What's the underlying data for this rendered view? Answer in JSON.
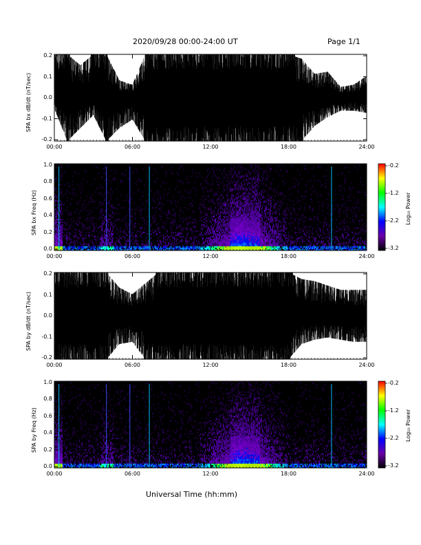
{
  "header": {
    "date_range": "2020/09/28  00:00-24:00 UT",
    "page": "Page 1/1"
  },
  "x_axis": {
    "label": "Universal Time (hh:mm)",
    "ticks": [
      "00:00",
      "06:00",
      "12:00",
      "18:00",
      "24:00"
    ]
  },
  "colorbar": {
    "label": "Log₁₀ Power",
    "ticks": [
      "-0.2",
      "-1.2",
      "-2.2",
      "-3.2"
    ],
    "colors": [
      "#ff0000",
      "#ffff00",
      "#00ff00",
      "#00ffff",
      "#0000ff",
      "#6a00a8",
      "#000000"
    ]
  },
  "panels": [
    {
      "ylabel": "SPA bx dB/dt (nT/sec)",
      "yticks": [
        "0.2",
        "0.1",
        "0.0",
        "-0.1",
        "-0.2"
      ]
    },
    {
      "ylabel": "SPA bx Freq (Hz)",
      "yticks": [
        "1.0",
        "0.8",
        "0.6",
        "0.4",
        "0.2",
        "0.0"
      ]
    },
    {
      "ylabel": "SPA by dB/dt (nT/sec)",
      "yticks": [
        "0.2",
        "0.1",
        "0.0",
        "-0.1",
        "-0.2"
      ]
    },
    {
      "ylabel": "SPA by Freq (Hz)",
      "yticks": [
        "1.0",
        "0.8",
        "0.6",
        "0.4",
        "0.2",
        "0.0"
      ]
    }
  ],
  "chart_data": [
    {
      "type": "line",
      "ylabel": "SPA bx dB/dt (nT/sec)",
      "xlim": [
        "00:00",
        "24:00"
      ],
      "ylim": [
        -0.2,
        0.2
      ],
      "envelope": {
        "hours": [
          0,
          1,
          2,
          3,
          4,
          5,
          6,
          7,
          8,
          9,
          10,
          11,
          12,
          13,
          14,
          15,
          16,
          17,
          18,
          19,
          20,
          21,
          22,
          23,
          24
        ],
        "max": [
          0.2,
          0.2,
          0.15,
          0.2,
          0.2,
          0.08,
          0.06,
          0.2,
          0.2,
          0.2,
          0.2,
          0.2,
          0.2,
          0.2,
          0.2,
          0.2,
          0.2,
          0.2,
          0.2,
          0.18,
          0.11,
          0.12,
          0.05,
          0.06,
          0.1
        ],
        "min": [
          -0.05,
          -0.2,
          -0.14,
          -0.08,
          -0.2,
          -0.14,
          -0.1,
          -0.2,
          -0.2,
          -0.2,
          -0.2,
          -0.2,
          -0.2,
          -0.2,
          -0.2,
          -0.2,
          -0.2,
          -0.2,
          -0.2,
          -0.2,
          -0.13,
          -0.09,
          -0.06,
          -0.06,
          -0.07
        ]
      }
    },
    {
      "type": "heatmap",
      "ylabel": "SPA bx Freq (Hz)",
      "xlim": [
        "00:00",
        "24:00"
      ],
      "ylim": [
        0.0,
        1.0
      ],
      "zlabel": "Log₁₀ Power",
      "zlim": [
        -3.2,
        -0.2
      ]
    },
    {
      "type": "line",
      "ylabel": "SPA by dB/dt (nT/sec)",
      "xlim": [
        "00:00",
        "24:00"
      ],
      "ylim": [
        -0.2,
        0.2
      ],
      "envelope": {
        "hours": [
          0,
          1,
          2,
          3,
          4,
          5,
          6,
          7,
          8,
          9,
          10,
          11,
          12,
          13,
          14,
          15,
          16,
          17,
          18,
          19,
          20,
          21,
          22,
          23,
          24
        ],
        "max": [
          0.2,
          0.2,
          0.19,
          0.2,
          0.2,
          0.13,
          0.1,
          0.15,
          0.2,
          0.2,
          0.2,
          0.2,
          0.2,
          0.2,
          0.2,
          0.2,
          0.2,
          0.2,
          0.2,
          0.17,
          0.16,
          0.14,
          0.12,
          0.12,
          0.12
        ],
        "min": [
          -0.2,
          -0.2,
          -0.2,
          -0.2,
          -0.2,
          -0.13,
          -0.12,
          -0.2,
          -0.2,
          -0.2,
          -0.2,
          -0.2,
          -0.2,
          -0.2,
          -0.2,
          -0.2,
          -0.2,
          -0.2,
          -0.2,
          -0.13,
          -0.11,
          -0.1,
          -0.11,
          -0.12,
          -0.12
        ]
      }
    },
    {
      "type": "heatmap",
      "ylabel": "SPA by Freq (Hz)",
      "xlim": [
        "00:00",
        "24:00"
      ],
      "ylim": [
        0.0,
        1.0
      ],
      "zlabel": "Log₁₀ Power",
      "zlim": [
        -3.2,
        -0.2
      ]
    }
  ]
}
